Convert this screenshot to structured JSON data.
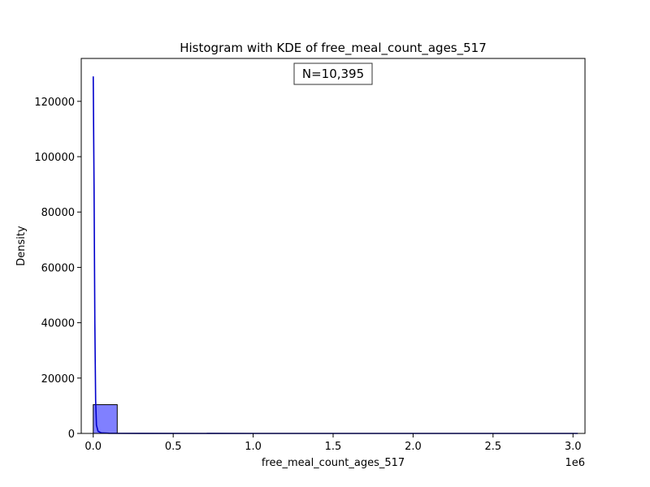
{
  "chart_data": {
    "type": "bar",
    "title": "Histogram with KDE of free_meal_count_ages_517",
    "xlabel": "free_meal_count_ages_517",
    "ylabel": "Density",
    "x_offset_label": "1e6",
    "annotation": "N=10,395",
    "xlim": [
      -0.075,
      3.075
    ],
    "ylim": [
      0,
      135500
    ],
    "x_ticks": [
      0,
      0.5,
      1.0,
      1.5,
      2.0,
      2.5,
      3.0
    ],
    "x_tick_labels": [
      "0.0",
      "0.5",
      "1.0",
      "1.5",
      "2.0",
      "2.5",
      "3.0"
    ],
    "y_ticks": [
      0,
      20000,
      40000,
      60000,
      80000,
      100000,
      120000
    ],
    "y_tick_labels": [
      "0",
      "20000",
      "40000",
      "60000",
      "80000",
      "100000",
      "120000"
    ],
    "grid": false,
    "bins": [
      {
        "x0": 0.0,
        "x1": 0.15,
        "value": 10395
      },
      {
        "x0": 0.15,
        "x1": 0.3,
        "value": 0
      },
      {
        "x0": 0.3,
        "x1": 0.45,
        "value": 0
      },
      {
        "x0": 0.45,
        "x1": 0.6,
        "value": 0
      },
      {
        "x0": 0.6,
        "x1": 0.75,
        "value": 0
      },
      {
        "x0": 0.75,
        "x1": 0.9,
        "value": 0
      },
      {
        "x0": 0.9,
        "x1": 1.05,
        "value": 0
      },
      {
        "x0": 1.05,
        "x1": 1.2,
        "value": 0
      },
      {
        "x0": 1.2,
        "x1": 1.35,
        "value": 0
      },
      {
        "x0": 1.35,
        "x1": 1.5,
        "value": 0
      },
      {
        "x0": 1.5,
        "x1": 1.65,
        "value": 0
      },
      {
        "x0": 1.65,
        "x1": 1.8,
        "value": 0
      },
      {
        "x0": 1.8,
        "x1": 1.95,
        "value": 0
      },
      {
        "x0": 1.95,
        "x1": 2.1,
        "value": 0
      },
      {
        "x0": 2.1,
        "x1": 2.25,
        "value": 0
      },
      {
        "x0": 2.25,
        "x1": 2.4,
        "value": 0
      },
      {
        "x0": 2.4,
        "x1": 2.55,
        "value": 0
      },
      {
        "x0": 2.55,
        "x1": 2.7,
        "value": 0
      },
      {
        "x0": 2.7,
        "x1": 2.85,
        "value": 0
      },
      {
        "x0": 2.85,
        "x1": 3.0,
        "value": 0
      }
    ],
    "kde": {
      "x": [
        0.0,
        0.005,
        0.01,
        0.015,
        0.02,
        0.03,
        0.05,
        0.1,
        0.3,
        1.0,
        2.0,
        3.03
      ],
      "y": [
        129000,
        90000,
        40000,
        12000,
        3000,
        800,
        200,
        50,
        10,
        0,
        0,
        0
      ]
    },
    "colors": {
      "bar_fill": "#8080ff",
      "bar_edge": "#000000",
      "kde_line": "#0000cc"
    }
  }
}
